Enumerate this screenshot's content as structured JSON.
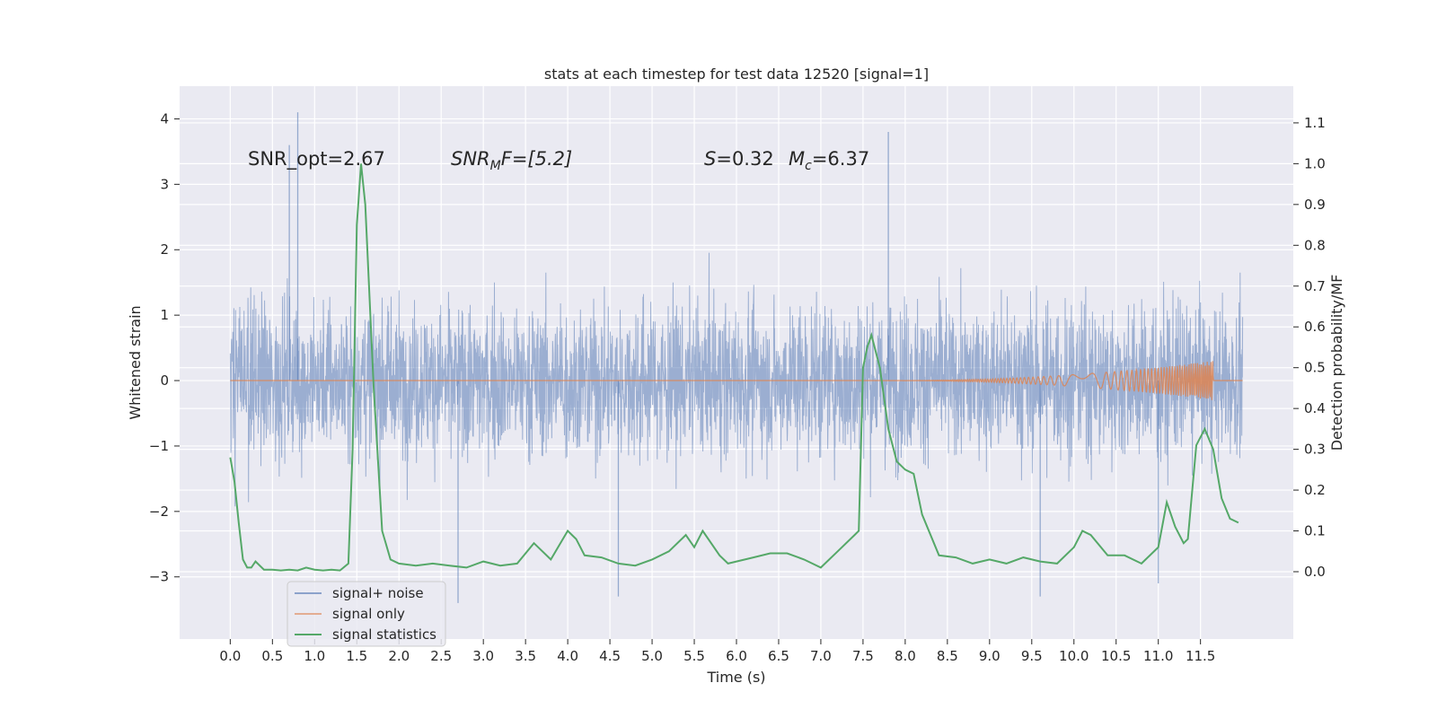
{
  "chart_data": {
    "type": "line",
    "title": "stats at each timestep for test data 12520 [signal=1]",
    "xlabel": "Time (s)",
    "ylabel_left": "Whitened strain",
    "ylabel_right": "Detection probability/MF",
    "xlim": [
      -0.6,
      12.6
    ],
    "ylim_left": [
      -3.95,
      4.5
    ],
    "ylim_right": [
      -0.165,
      1.19
    ],
    "grid": true,
    "legend_position": "lower-left",
    "x_ticks": [
      "0.0",
      "0.5",
      "1.0",
      "1.5",
      "2.0",
      "2.5",
      "3.0",
      "3.5",
      "4.0",
      "4.5",
      "5.0",
      "5.5",
      "6.0",
      "6.5",
      "7.0",
      "7.5",
      "8.0",
      "8.5",
      "9.0",
      "9.5",
      "10.0",
      "10.5",
      "11.0",
      "11.5"
    ],
    "y_ticks_left": [
      "−3",
      "−2",
      "−1",
      "0",
      "1",
      "2",
      "3",
      "4"
    ],
    "y_ticks_right": [
      "0.0",
      "0.1",
      "0.2",
      "0.3",
      "0.4",
      "0.5",
      "0.6",
      "0.7",
      "0.8",
      "0.9",
      "1.0",
      "1.1"
    ],
    "annotations": {
      "snr_opt": "SNR_opt=2.67",
      "snr_mf_sym": "SNR",
      "snr_mf_sub": "M",
      "snr_mf_rest": "F=[5.2]",
      "s_sym": "S",
      "s_rest": "=0.32",
      "mc_sym": "M",
      "mc_sub": "c",
      "mc_rest": "=6.37"
    },
    "colors": {
      "noise": "#4c72b0",
      "signal": "#dd8452",
      "stats": "#55a868",
      "plot_bg": "#eaeaf2",
      "grid": "#ffffff"
    },
    "series": [
      {
        "name": "signal+ noise",
        "axis": "left",
        "kind": "noise band",
        "x_range": [
          0.0,
          12.0
        ],
        "typical_range": [
          -1.6,
          1.5
        ],
        "extremes": [
          {
            "x": 0.8,
            "y": 4.1
          },
          {
            "x": 0.7,
            "y": 3.6
          },
          {
            "x": 7.8,
            "y": 3.8
          },
          {
            "x": 2.7,
            "y": -3.4
          },
          {
            "x": 4.6,
            "y": -3.3
          },
          {
            "x": 9.6,
            "y": -3.3
          },
          {
            "x": 11.0,
            "y": -3.1
          }
        ]
      },
      {
        "name": "signal only",
        "axis": "left",
        "kind": "chirp",
        "start": 7.7,
        "peak": 11.65,
        "end": 12.0,
        "max_amplitude": 0.3
      },
      {
        "name": "signal statistics",
        "axis": "right",
        "x": [
          0.0,
          0.05,
          0.1,
          0.15,
          0.2,
          0.25,
          0.3,
          0.4,
          0.5,
          0.6,
          0.7,
          0.8,
          0.9,
          1.0,
          1.1,
          1.2,
          1.3,
          1.4,
          1.45,
          1.5,
          1.55,
          1.6,
          1.7,
          1.8,
          1.9,
          2.0,
          2.2,
          2.4,
          2.6,
          2.8,
          3.0,
          3.2,
          3.4,
          3.6,
          3.8,
          4.0,
          4.1,
          4.2,
          4.4,
          4.6,
          4.8,
          5.0,
          5.2,
          5.4,
          5.5,
          5.6,
          5.8,
          5.9,
          6.0,
          6.2,
          6.4,
          6.6,
          6.8,
          7.0,
          7.2,
          7.4,
          7.45,
          7.5,
          7.55,
          7.6,
          7.7,
          7.8,
          7.9,
          8.0,
          8.1,
          8.2,
          8.4,
          8.6,
          8.8,
          9.0,
          9.2,
          9.4,
          9.6,
          9.8,
          10.0,
          10.1,
          10.2,
          10.4,
          10.6,
          10.8,
          11.0,
          11.1,
          11.2,
          11.3,
          11.35,
          11.45,
          11.55,
          11.65,
          11.75,
          11.85,
          11.95
        ],
        "values": [
          0.28,
          0.22,
          0.12,
          0.03,
          0.01,
          0.01,
          0.025,
          0.005,
          0.005,
          0.003,
          0.005,
          0.003,
          0.01,
          0.005,
          0.003,
          0.005,
          0.003,
          0.02,
          0.3,
          0.85,
          1.0,
          0.9,
          0.45,
          0.1,
          0.03,
          0.02,
          0.015,
          0.02,
          0.015,
          0.01,
          0.025,
          0.015,
          0.02,
          0.07,
          0.03,
          0.1,
          0.08,
          0.04,
          0.035,
          0.02,
          0.015,
          0.03,
          0.05,
          0.09,
          0.06,
          0.1,
          0.04,
          0.02,
          0.025,
          0.035,
          0.045,
          0.045,
          0.03,
          0.01,
          0.05,
          0.09,
          0.1,
          0.5,
          0.55,
          0.58,
          0.5,
          0.35,
          0.27,
          0.25,
          0.24,
          0.14,
          0.04,
          0.035,
          0.02,
          0.03,
          0.02,
          0.035,
          0.025,
          0.02,
          0.06,
          0.1,
          0.09,
          0.04,
          0.04,
          0.02,
          0.06,
          0.17,
          0.11,
          0.07,
          0.08,
          0.31,
          0.35,
          0.3,
          0.18,
          0.13,
          0.12
        ]
      }
    ]
  }
}
